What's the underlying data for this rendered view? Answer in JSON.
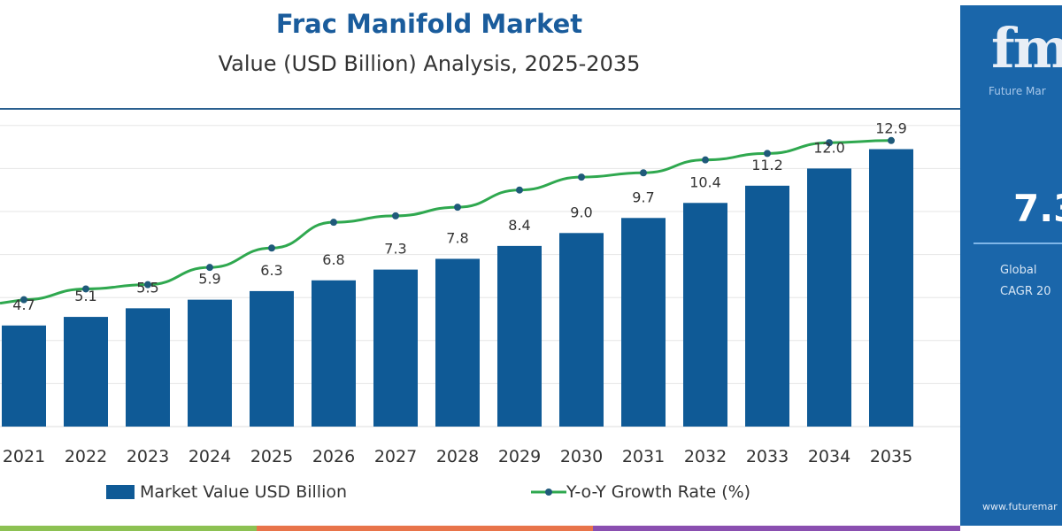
{
  "title": "Frac Manifold Market",
  "subtitle": "Value (USD Billion) Analysis, 2025-2035",
  "panel": {
    "brand": "Future Mar",
    "cagr_value": "7.3",
    "label_line1": "Global",
    "label_line2": "CAGR 20",
    "url": "www.futuremar",
    "logo_text": "fm"
  },
  "colors": {
    "bar": "#0f5a96",
    "line": "#2fa84f",
    "marker": "#1f5a7a",
    "panel": "#1a66aa"
  },
  "chart_data": {
    "type": "bar",
    "categories": [
      "2021",
      "2022",
      "2023",
      "2024",
      "2025",
      "2026",
      "2027",
      "2028",
      "2029",
      "2030",
      "2031",
      "2032",
      "2033",
      "2034",
      "2035"
    ],
    "series": [
      {
        "name": "Market Value USD Billion",
        "type": "bar",
        "values": [
          4.7,
          5.1,
          5.5,
          5.9,
          6.3,
          6.8,
          7.3,
          7.8,
          8.4,
          9.0,
          9.7,
          10.4,
          11.2,
          12.0,
          12.9
        ],
        "labels": [
          "4.7",
          "5.1",
          "5.5",
          "5.9",
          "6.3",
          "6.8",
          "7.3",
          "7.8",
          "8.4",
          "9.0",
          "9.7",
          "10.4",
          "11.2",
          "12.0",
          "12.9"
        ]
      },
      {
        "name": "Y-o-Y Growth Rate (%)",
        "type": "line",
        "values": [
          5.9,
          6.4,
          6.6,
          7.4,
          8.3,
          9.5,
          9.8,
          10.2,
          11.0,
          11.6,
          11.8,
          12.4,
          12.7,
          13.2,
          13.3
        ]
      }
    ],
    "ylim": [
      0,
      14
    ],
    "grid": true,
    "legend": "bottom"
  }
}
